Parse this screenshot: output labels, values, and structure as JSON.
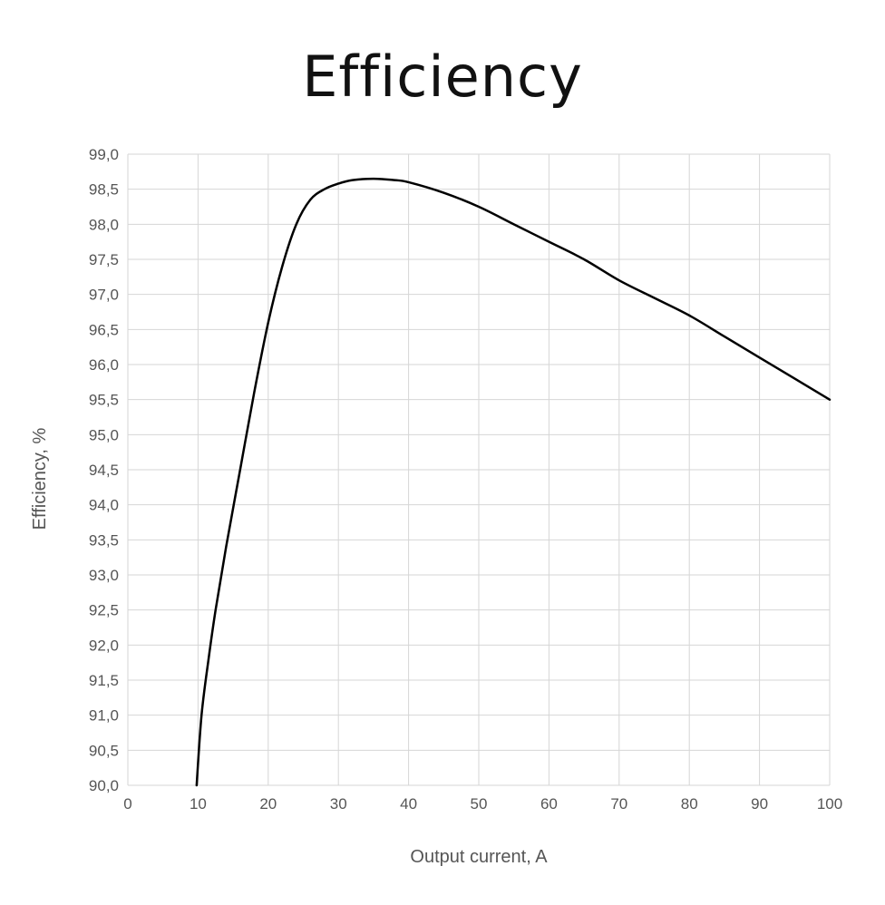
{
  "chart_data": {
    "type": "line",
    "title": "Efficiency",
    "xlabel": "Output current, A",
    "ylabel": "Efficiency, %",
    "xlim": [
      0,
      100
    ],
    "ylim": [
      90.0,
      99.0
    ],
    "x_ticks": [
      0,
      10,
      20,
      30,
      40,
      50,
      60,
      70,
      80,
      90,
      100
    ],
    "y_ticks": [
      90.0,
      90.5,
      91.0,
      91.5,
      92.0,
      92.5,
      93.0,
      93.5,
      94.0,
      94.5,
      95.0,
      95.5,
      96.0,
      96.5,
      97.0,
      97.5,
      98.0,
      98.5,
      99.0
    ],
    "x_tick_labels": [
      "0",
      "10",
      "20",
      "30",
      "40",
      "50",
      "60",
      "70",
      "80",
      "90",
      "100"
    ],
    "y_tick_labels": [
      "90,0",
      "90,5",
      "91,0",
      "91,5",
      "92,0",
      "92,5",
      "93,0",
      "93,5",
      "94,0",
      "94,5",
      "95,0",
      "95,5",
      "96,0",
      "96,5",
      "97,0",
      "97,5",
      "98,0",
      "98,5",
      "99,0"
    ],
    "grid": true,
    "legend": "none",
    "line_color": "#000000",
    "series": [
      {
        "x": [
          9.8,
          10.5,
          11.5,
          12.5,
          14,
          16,
          18,
          20,
          22,
          24,
          26,
          28,
          30,
          32,
          35,
          38,
          40,
          45,
          50,
          55,
          60,
          65,
          70,
          75,
          80,
          85,
          90,
          95,
          100
        ],
        "values": [
          90.0,
          91.0,
          91.8,
          92.5,
          93.4,
          94.5,
          95.6,
          96.6,
          97.4,
          98.0,
          98.35,
          98.5,
          98.58,
          98.63,
          98.65,
          98.63,
          98.6,
          98.45,
          98.25,
          98.0,
          97.75,
          97.5,
          97.2,
          96.95,
          96.7,
          96.4,
          96.1,
          95.8,
          95.5
        ]
      }
    ]
  }
}
